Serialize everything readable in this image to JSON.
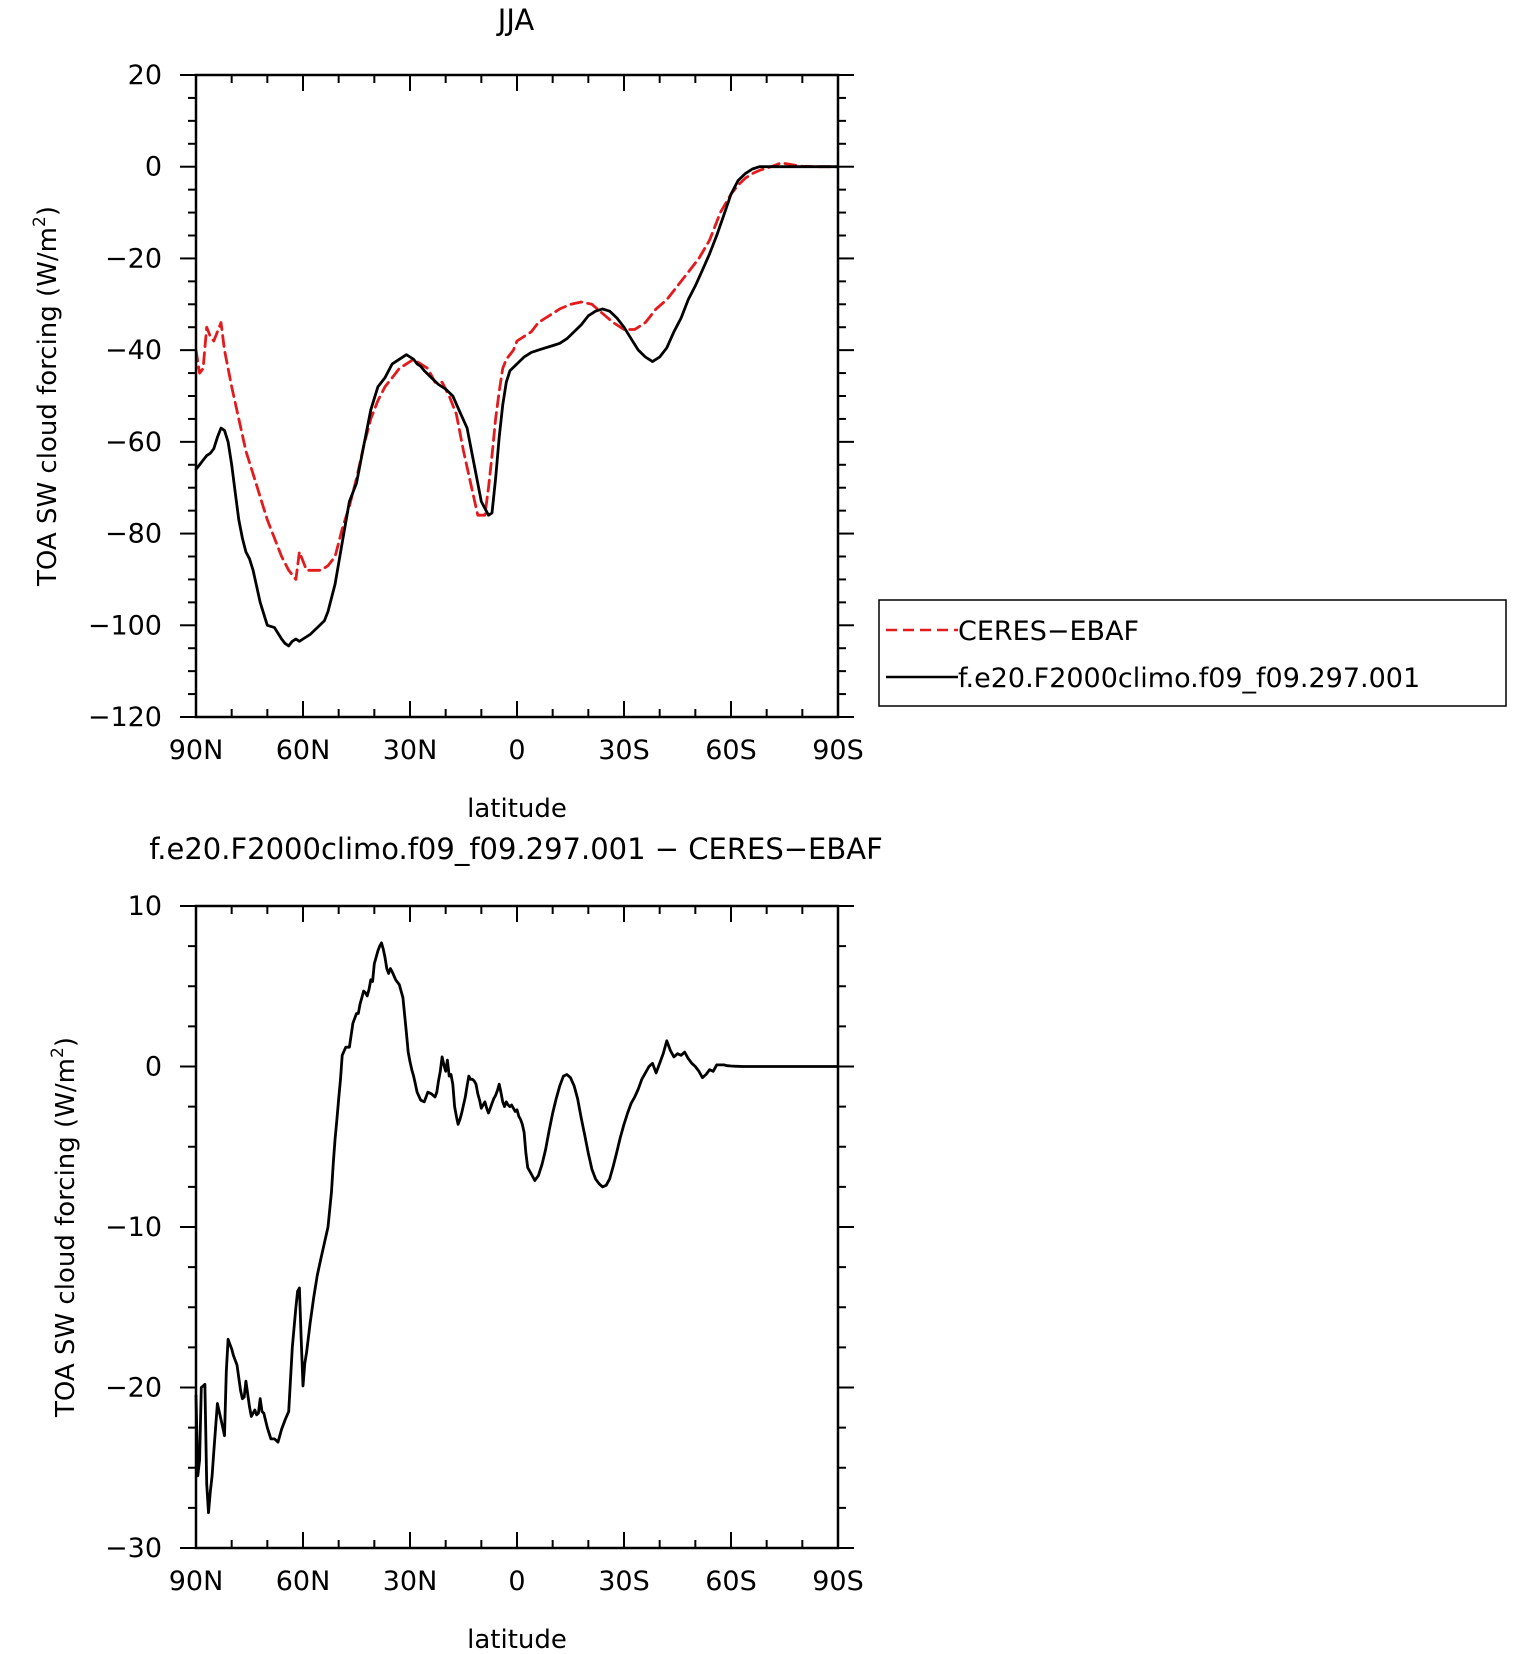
{
  "chart_data": [
    {
      "type": "line",
      "title": "JJA",
      "xlabel": "latitude",
      "ylabel_main": "TOA SW cloud forcing (W/m",
      "ylabel_sup": "2",
      "ylabel_end": ")",
      "xlim": [
        90,
        -90
      ],
      "ylim": [
        -120,
        20
      ],
      "xticks": [
        {
          "v": 90,
          "label": "90N"
        },
        {
          "v": 60,
          "label": "60N"
        },
        {
          "v": 30,
          "label": "30N"
        },
        {
          "v": 0,
          "label": "0"
        },
        {
          "v": -30,
          "label": "30S"
        },
        {
          "v": -60,
          "label": "60S"
        },
        {
          "v": -90,
          "label": "90S"
        }
      ],
      "yticks": [
        {
          "v": 20,
          "label": "20"
        },
        {
          "v": 0,
          "label": "0"
        },
        {
          "v": -20,
          "label": "−20"
        },
        {
          "v": -40,
          "label": "−40"
        },
        {
          "v": -60,
          "label": "−60"
        },
        {
          "v": -80,
          "label": "−80"
        },
        {
          "v": -100,
          "label": "−100"
        },
        {
          "v": -120,
          "label": "−120"
        }
      ],
      "legend_position": "right",
      "series": [
        {
          "name": "CERES−EBAF",
          "color": "#e41a1c",
          "dash": "dashed",
          "x": [
            90,
            89,
            88,
            87,
            86,
            85,
            84,
            83,
            82,
            81,
            80,
            78,
            76,
            74,
            72,
            70,
            68,
            66,
            64,
            62,
            61,
            60,
            59,
            57,
            55,
            53,
            51,
            49,
            47,
            45,
            43,
            41,
            39,
            37,
            35,
            33,
            31,
            29,
            27,
            25,
            23,
            21,
            19,
            17,
            15,
            13,
            11,
            9,
            8,
            7,
            6,
            5,
            4,
            3,
            2,
            1,
            0,
            -2,
            -4,
            -6,
            -8,
            -10,
            -12,
            -15,
            -18,
            -21,
            -24,
            -27,
            -30,
            -33,
            -36,
            -39,
            -42,
            -45,
            -48,
            -51,
            -54,
            -57,
            -60,
            -62,
            -64,
            -66,
            -68,
            -70,
            -72,
            -74,
            -76,
            -78,
            -80,
            -84,
            -88,
            -90
          ],
          "y": [
            -40,
            -45,
            -44,
            -35,
            -37,
            -38,
            -36,
            -34,
            -40,
            -44,
            -48,
            -55,
            -62,
            -67,
            -72,
            -77,
            -81,
            -85,
            -88,
            -90,
            -84,
            -86,
            -88,
            -88,
            -88,
            -87,
            -85,
            -79,
            -74,
            -68,
            -61,
            -55,
            -51,
            -48,
            -46,
            -44,
            -43,
            -42,
            -43,
            -44,
            -47,
            -47,
            -50,
            -54,
            -62,
            -69,
            -76,
            -76,
            -70,
            -63,
            -55,
            -49,
            -44,
            -42,
            -41,
            -40,
            -38,
            -37,
            -36,
            -34,
            -33,
            -32,
            -31,
            -30,
            -29.5,
            -30,
            -32,
            -34,
            -35.5,
            -35.5,
            -34,
            -31,
            -29,
            -26,
            -23,
            -20,
            -16,
            -10,
            -6,
            -4,
            -2.5,
            -1.5,
            -0.8,
            -0.3,
            0.2,
            0.8,
            0.6,
            0.3,
            0.1,
            0,
            0,
            0
          ]
        },
        {
          "name": "f.e20.F2000climo.f09_f09.297.001",
          "color": "#000000",
          "dash": "solid",
          "x": [
            90,
            89,
            88,
            87,
            86,
            85,
            84,
            83,
            82,
            81,
            80,
            79,
            78,
            77,
            76,
            75,
            74,
            72,
            70,
            68,
            66,
            65,
            64,
            63,
            62,
            61,
            60,
            58,
            56,
            54,
            53,
            51,
            49,
            47,
            45,
            43,
            41,
            39,
            37,
            35,
            33,
            31,
            30,
            29,
            28,
            27,
            26,
            24,
            22,
            20,
            18,
            16,
            14,
            12,
            10,
            8,
            7,
            6,
            5,
            4,
            3,
            2,
            0,
            -2,
            -4,
            -6,
            -8,
            -10,
            -12,
            -14,
            -16,
            -18,
            -20,
            -22,
            -24,
            -26,
            -28,
            -30,
            -32,
            -34,
            -36,
            -38,
            -40,
            -42,
            -44,
            -46,
            -48,
            -50,
            -52,
            -54,
            -56,
            -58,
            -60,
            -62,
            -64,
            -66,
            -68,
            -70,
            -72,
            -74,
            -78,
            -82,
            -86,
            -90
          ],
          "y": [
            -66,
            -65,
            -64,
            -63,
            -62.5,
            -61.5,
            -59,
            -57,
            -57.5,
            -60,
            -65,
            -71,
            -77,
            -81,
            -84,
            -85.5,
            -88,
            -95,
            -100,
            -100.5,
            -103,
            -104,
            -104.5,
            -103.5,
            -103,
            -103.5,
            -103,
            -102,
            -100.5,
            -99,
            -97,
            -91,
            -82,
            -73,
            -69,
            -61,
            -53,
            -48,
            -46,
            -43,
            -42,
            -41,
            -41.5,
            -42,
            -43,
            -43.5,
            -44.5,
            -46,
            -47.5,
            -48.5,
            -50,
            -53.5,
            -57,
            -65,
            -73,
            -76,
            -75.5,
            -68,
            -59,
            -52,
            -47,
            -44.5,
            -43,
            -41.5,
            -40.5,
            -40,
            -39.5,
            -39,
            -38.5,
            -37.5,
            -36,
            -34.5,
            -32.5,
            -31.5,
            -31,
            -31.5,
            -33,
            -35,
            -37.5,
            -40,
            -41.5,
            -42.5,
            -41.5,
            -39.5,
            -36,
            -33,
            -29,
            -26,
            -22.5,
            -19,
            -15,
            -10.5,
            -6,
            -3,
            -1.5,
            -0.5,
            0,
            0,
            0,
            0,
            0,
            0,
            0,
            0
          ]
        }
      ]
    },
    {
      "type": "line",
      "title": "f.e20.F2000climo.f09_f09.297.001  −  CERES−EBAF",
      "xlabel": "latitude",
      "ylabel_main": "TOA SW cloud forcing (W/m",
      "ylabel_sup": "2",
      "ylabel_end": ")",
      "xlim": [
        90,
        -90
      ],
      "ylim": [
        -30,
        10
      ],
      "xticks": [
        {
          "v": 90,
          "label": "90N"
        },
        {
          "v": 60,
          "label": "60N"
        },
        {
          "v": 30,
          "label": "30N"
        },
        {
          "v": 0,
          "label": "0"
        },
        {
          "v": -30,
          "label": "30S"
        },
        {
          "v": -60,
          "label": "60S"
        },
        {
          "v": -90,
          "label": "90S"
        }
      ],
      "yticks": [
        {
          "v": 10,
          "label": "10"
        },
        {
          "v": 0,
          "label": "0"
        },
        {
          "v": -10,
          "label": "−10"
        },
        {
          "v": -20,
          "label": "−20"
        },
        {
          "v": -30,
          "label": "−30"
        }
      ],
      "series": [
        {
          "color": "#000000",
          "dash": "solid",
          "x": [
            90,
            89.5,
            89,
            88.5,
            88,
            87.5,
            87,
            86.5,
            86,
            85.5,
            85,
            84.5,
            84,
            83.5,
            83,
            82.5,
            82,
            81.5,
            81,
            80.5,
            80,
            79.5,
            79,
            78.5,
            78,
            77.5,
            77,
            76.5,
            76,
            75,
            74.5,
            74,
            73.5,
            73,
            72.5,
            72,
            71.5,
            71,
            70,
            69,
            68,
            67,
            66,
            65,
            64,
            63,
            62,
            61.5,
            61,
            60.5,
            60,
            59.5,
            59,
            58,
            57,
            56,
            55,
            54,
            53,
            52,
            51.5,
            51,
            50.5,
            50,
            49.5,
            49,
            48,
            47,
            46,
            45,
            44.5,
            44,
            43.5,
            43,
            42.5,
            42,
            41.5,
            41,
            40.5,
            40,
            39.5,
            39,
            38.5,
            38,
            37.5,
            37,
            36.5,
            36,
            35.5,
            35,
            34,
            33,
            32,
            31,
            30.5,
            30,
            29.5,
            29,
            28.5,
            28,
            27,
            26,
            25,
            24,
            23,
            22.5,
            22,
            21.5,
            21,
            20.5,
            20,
            19.5,
            19,
            18.5,
            18,
            17.5,
            17,
            16.5,
            16,
            15.5,
            15,
            14.5,
            14,
            13.5,
            13,
            12.5,
            12,
            11.5,
            11,
            10.5,
            10,
            9.5,
            9,
            8.5,
            8,
            7.5,
            7,
            6.5,
            6,
            5.5,
            5,
            4.5,
            4,
            3.5,
            3,
            2.5,
            2,
            1.5,
            1,
            0.5,
            0,
            -0.5,
            -1,
            -1.5,
            -2,
            -2.5,
            -3,
            -4,
            -5,
            -6,
            -7,
            -8,
            -9,
            -10,
            -11,
            -12,
            -13,
            -14,
            -15,
            -16,
            -17,
            -18,
            -19,
            -20,
            -21,
            -22,
            -23,
            -24,
            -25,
            -26,
            -27,
            -28,
            -29,
            -30,
            -31,
            -32,
            -33,
            -34,
            -35,
            -36,
            -37,
            -38,
            -39,
            -40,
            -41,
            -42,
            -43,
            -44,
            -45,
            -46,
            -47,
            -48,
            -49,
            -50,
            -51,
            -52,
            -53,
            -54,
            -55,
            -56,
            -57,
            -58,
            -59,
            -60,
            -61,
            -62,
            -63,
            -64,
            -65,
            -66,
            -67,
            -68,
            -69,
            -70,
            -71,
            -72,
            -73,
            -74,
            -75,
            -76,
            -77,
            -78,
            -79,
            -80,
            -81,
            -82,
            -83,
            -84,
            -85,
            -86,
            -87,
            -88,
            -89,
            -90
          ],
          "y": [
            -20.5,
            -25.5,
            -24.5,
            -20,
            -19.9,
            -19.8,
            -26,
            -27.8,
            -26.5,
            -25.5,
            -24,
            -22.5,
            -21,
            -21.5,
            -22,
            -22.5,
            -23,
            -19,
            -17,
            -17.3,
            -17.6,
            -18,
            -18.3,
            -18.6,
            -19.4,
            -20.2,
            -20.7,
            -20.6,
            -19.6,
            -21.2,
            -21.8,
            -21.6,
            -21.4,
            -21.7,
            -21.6,
            -20.7,
            -21.5,
            -21.6,
            -22.5,
            -23.2,
            -23.2,
            -23.4,
            -22.6,
            -22,
            -21.5,
            -17.5,
            -15,
            -14,
            -13.8,
            -17,
            -19.9,
            -18.5,
            -17.8,
            -16,
            -14.4,
            -13,
            -12,
            -11,
            -10,
            -7.8,
            -6,
            -4.5,
            -3.3,
            -2,
            -0.8,
            0.7,
            1.2,
            1.2,
            2.7,
            3.3,
            3.3,
            3.9,
            4.3,
            4.7,
            4.6,
            4.4,
            4.8,
            5.4,
            5.3,
            6.4,
            6.8,
            7.2,
            7.5,
            7.7,
            7.3,
            6.8,
            6.1,
            5.8,
            6.1,
            5.9,
            5.4,
            5.1,
            4.3,
            2.1,
            0.9,
            0.3,
            -0.2,
            -0.6,
            -1.1,
            -1.6,
            -2.1,
            -2.2,
            -1.6,
            -1.7,
            -1.9,
            -1.6,
            -0.9,
            -0.3,
            0.6,
            0.1,
            -0.3,
            0.4,
            -0.6,
            -0.5,
            -1.1,
            -2.5,
            -3.1,
            -3.6,
            -3.3,
            -2.9,
            -2.4,
            -1.9,
            -1.2,
            -0.6,
            -0.8,
            -0.8,
            -0.9,
            -1.1,
            -1.7,
            -2.1,
            -2.6,
            -2.4,
            -2.2,
            -2.6,
            -2.9,
            -2.6,
            -2.3,
            -2,
            -1.8,
            -1.5,
            -1.1,
            -1.6,
            -2.2,
            -2.5,
            -2.2,
            -2.4,
            -2.5,
            -2.4,
            -2.6,
            -2.8,
            -2.7,
            -3.1,
            -3.3,
            -3.6,
            -4.1,
            -5.4,
            -6.3,
            -6.7,
            -7.1,
            -6.8,
            -6.1,
            -5.2,
            -4.0,
            -2.9,
            -2.0,
            -1.2,
            -0.6,
            -0.5,
            -0.7,
            -1.2,
            -2.0,
            -3.2,
            -4.3,
            -5.4,
            -6.4,
            -7.0,
            -7.3,
            -7.5,
            -7.4,
            -7.0,
            -6.2,
            -5.3,
            -4.4,
            -3.6,
            -2.9,
            -2.3,
            -1.9,
            -1.4,
            -0.8,
            -0.4,
            0.0,
            0.2,
            -0.4,
            0.2,
            0.8,
            1.6,
            1.0,
            0.6,
            0.8,
            0.7,
            0.9,
            0.5,
            0.2,
            0.0,
            -0.3,
            -0.7,
            -0.5,
            -0.2,
            -0.3,
            0.1,
            0.1,
            0.1,
            0.05,
            0.03,
            0.02,
            0.01,
            0,
            0,
            0,
            0,
            0,
            0,
            0,
            0,
            0,
            0,
            0,
            0,
            0,
            0,
            0,
            0,
            0,
            0,
            0,
            0,
            0,
            0,
            0,
            0,
            0,
            0,
            0,
            0
          ]
        }
      ]
    }
  ]
}
